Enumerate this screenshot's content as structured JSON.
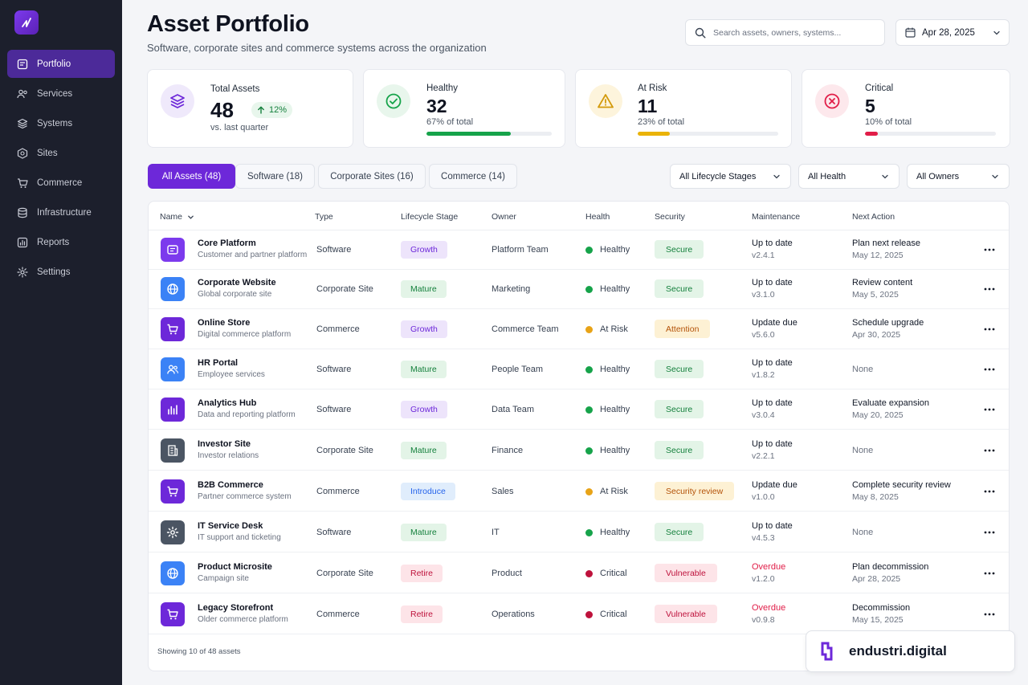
{
  "nav": [
    {
      "label": "Portfolio",
      "icon": "portfolio-icon",
      "active": true
    },
    {
      "label": "Services",
      "icon": "services-icon"
    },
    {
      "label": "Systems",
      "icon": "systems-icon"
    },
    {
      "label": "Sites",
      "icon": "sites-icon"
    },
    {
      "label": "Commerce",
      "icon": "cart-icon"
    },
    {
      "label": "Infrastructure",
      "icon": "database-icon"
    },
    {
      "label": "Reports",
      "icon": "reports-icon"
    },
    {
      "label": "Settings",
      "icon": "gear-icon"
    }
  ],
  "header": {
    "title": "Asset Portfolio",
    "subtitle": "Software, corporate sites and commerce systems across the organization",
    "search_placeholder": "Search assets, owners, systems...",
    "date": "Apr 28, 2025"
  },
  "stats": {
    "total": {
      "label": "Total Assets",
      "value": "48",
      "trend": "12%",
      "sub": "vs. last quarter"
    },
    "healthy": {
      "label": "Healthy",
      "value": "32",
      "sub": "67% of total",
      "percent": 67,
      "color": "#16a34a"
    },
    "at_risk": {
      "label": "At Risk",
      "value": "11",
      "sub": "23% of total",
      "percent": 23,
      "color": "#eab308"
    },
    "critical": {
      "label": "Critical",
      "value": "5",
      "sub": "10% of total",
      "percent": 10,
      "color": "#e11d48"
    }
  },
  "tabs": [
    "All Assets (48)",
    "Software (18)",
    "Corporate Sites (16)",
    "Commerce (14)"
  ],
  "filters": [
    "All Lifecycle Stages",
    "All Health",
    "All Owners"
  ],
  "table": {
    "columns": [
      "Name",
      "Type",
      "Lifecycle Stage",
      "Owner",
      "Health",
      "Security",
      "Maintenance",
      "Next Action"
    ],
    "rows": [
      {
        "name": "Core Platform",
        "desc": "Customer and partner platform",
        "type": "Software",
        "stage": "Growth",
        "owner": "Platform Team",
        "health": "Healthy",
        "security": "Secure",
        "maint_status": "Up to date",
        "version": "v2.4.1",
        "next": "Plan next release",
        "next_date": "May 12, 2025",
        "icon": "platform-icon"
      },
      {
        "name": "Corporate Website",
        "desc": "Global corporate site",
        "type": "Corporate Site",
        "stage": "Mature",
        "owner": "Marketing",
        "health": "Healthy",
        "security": "Secure",
        "maint_status": "Up to date",
        "version": "v3.1.0",
        "next": "Review content",
        "next_date": "May 5, 2025",
        "icon": "globe-icon"
      },
      {
        "name": "Online Store",
        "desc": "Digital commerce platform",
        "type": "Commerce",
        "stage": "Growth",
        "owner": "Commerce Team",
        "health": "At Risk",
        "security": "Attention",
        "maint_status": "Update due",
        "version": "v5.6.0",
        "next": "Schedule upgrade",
        "next_date": "Apr 30, 2025",
        "icon": "cart-icon"
      },
      {
        "name": "HR Portal",
        "desc": "Employee services",
        "type": "Software",
        "stage": "Mature",
        "owner": "People Team",
        "health": "Healthy",
        "security": "Secure",
        "maint_status": "Up to date",
        "version": "v1.8.2",
        "next": "None",
        "next_date": "",
        "icon": "people-icon"
      },
      {
        "name": "Analytics Hub",
        "desc": "Data and reporting platform",
        "type": "Software",
        "stage": "Growth",
        "owner": "Data Team",
        "health": "Healthy",
        "security": "Secure",
        "maint_status": "Up to date",
        "version": "v3.0.4",
        "next": "Evaluate expansion",
        "next_date": "May 20, 2025",
        "icon": "chart-icon"
      },
      {
        "name": "Investor Site",
        "desc": "Investor relations",
        "type": "Corporate Site",
        "stage": "Mature",
        "owner": "Finance",
        "health": "Healthy",
        "security": "Secure",
        "maint_status": "Up to date",
        "version": "v2.2.1",
        "next": "None",
        "next_date": "",
        "icon": "building-icon"
      },
      {
        "name": "B2B Commerce",
        "desc": "Partner commerce system",
        "type": "Commerce",
        "stage": "Introduce",
        "owner": "Sales",
        "health": "At Risk",
        "security": "Security review",
        "maint_status": "Update due",
        "version": "v1.0.0",
        "next": "Complete security review",
        "next_date": "May 8, 2025",
        "icon": "cart-icon"
      },
      {
        "name": "IT Service Desk",
        "desc": "IT support and ticketing",
        "type": "Software",
        "stage": "Mature",
        "owner": "IT",
        "health": "Healthy",
        "security": "Secure",
        "maint_status": "Up to date",
        "version": "v4.5.3",
        "next": "None",
        "next_date": "",
        "icon": "gear-icon"
      },
      {
        "name": "Product Microsite",
        "desc": "Campaign site",
        "type": "Corporate Site",
        "stage": "Retire",
        "owner": "Product",
        "health": "Critical",
        "security": "Vulnerable",
        "maint_status": "Overdue",
        "version": "v1.2.0",
        "next": "Plan decommission",
        "next_date": "Apr 28, 2025",
        "icon": "globe-icon"
      },
      {
        "name": "Legacy Storefront",
        "desc": "Older commerce platform",
        "type": "Commerce",
        "stage": "Retire",
        "owner": "Operations",
        "health": "Critical",
        "security": "Vulnerable",
        "maint_status": "Overdue",
        "version": "v0.9.8",
        "next": "Decommission",
        "next_date": "May 15, 2025",
        "icon": "cart-icon"
      }
    ],
    "footer": "Showing 10 of 48 assets"
  },
  "brand": {
    "name": "endustri.digital"
  },
  "colors": {
    "accent": "#6d28d9",
    "healthy": "#16a34a",
    "at_risk": "#e8a317",
    "critical": "#e11d48"
  }
}
